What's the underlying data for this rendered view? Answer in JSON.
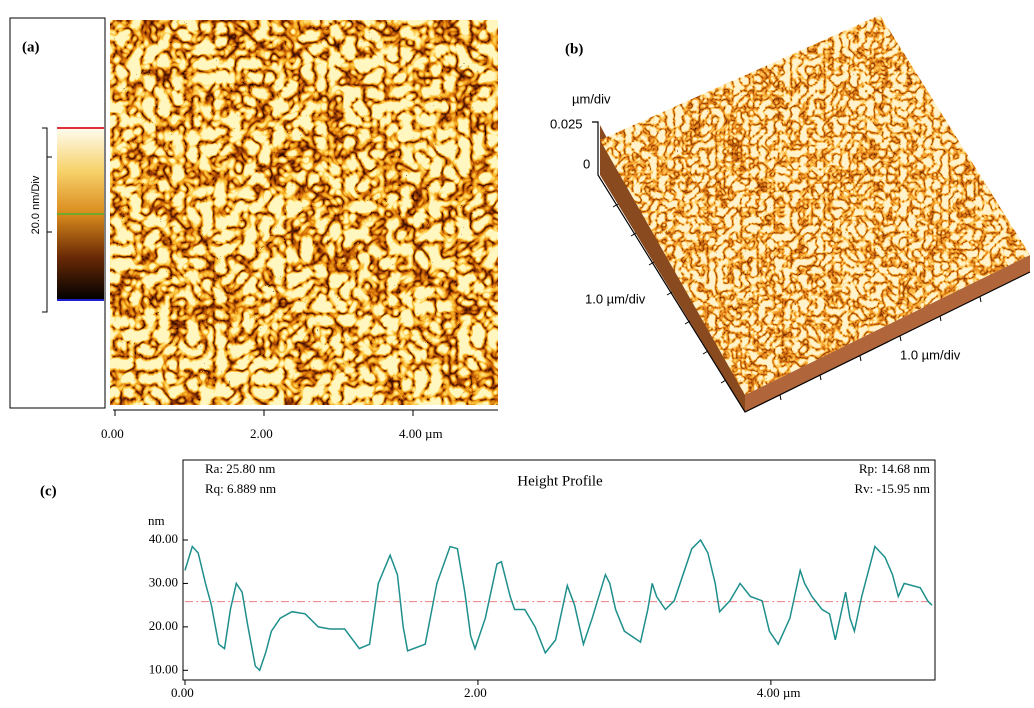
{
  "panels": {
    "a": {
      "label": "(a)",
      "colorbar_label": "20.0 nm/Div",
      "xlim": [
        0,
        5
      ],
      "xticks": [
        {
          "value": 0,
          "label": "0.00"
        },
        {
          "value": 2,
          "label": "2.00"
        },
        {
          "value": 4,
          "label": "4.00 µm"
        }
      ]
    },
    "b": {
      "label": "(b)",
      "z_unit": "µm/div",
      "z_top": "0.025",
      "z_zero": "0",
      "y_label": "1.0 µm/div",
      "x_label": "1.0 µm/div"
    }
  },
  "chart_data": {
    "type": "line",
    "label": "(c)",
    "title": "Height Profile",
    "title_color": "#1a1aff",
    "stats_left": [
      "Ra: 25.80 nm",
      "Rq: 6.889 nm"
    ],
    "stats_right": [
      "Rp: 14.68 nm",
      "Rv: -15.95 nm"
    ],
    "y_label": "nm",
    "xlim": [
      0,
      5.1
    ],
    "ylim": [
      8,
      42.3
    ],
    "xticks": [
      {
        "value": 0,
        "label": "0.00"
      },
      {
        "value": 2,
        "label": "2.00"
      },
      {
        "value": 4,
        "label": "4.00 µm"
      }
    ],
    "yticks": [
      {
        "value": 10,
        "label": "10.00"
      },
      {
        "value": 20,
        "label": "20.00"
      },
      {
        "value": 30,
        "label": "30.00"
      },
      {
        "value": 40,
        "label": "40.00"
      }
    ],
    "mean_line": {
      "value": 25.8,
      "color": "#f08080"
    },
    "x": [
      0,
      0.05,
      0.09,
      0.14,
      0.18,
      0.23,
      0.27,
      0.31,
      0.35,
      0.39,
      0.43,
      0.48,
      0.51,
      0.55,
      0.59,
      0.65,
      0.73,
      0.82,
      0.91,
      0.99,
      1.06,
      1.09,
      1.19,
      1.26,
      1.32,
      1.4,
      1.45,
      1.49,
      1.52,
      1.64,
      1.72,
      1.81,
      1.86,
      1.91,
      1.95,
      1.98,
      2.05,
      2.13,
      2.16,
      2.22,
      2.25,
      2.32,
      2.39,
      2.46,
      2.53,
      2.61,
      2.66,
      2.72,
      2.78,
      2.87,
      2.9,
      2.94,
      3.0,
      3.11,
      3.16,
      3.19,
      3.22,
      3.28,
      3.34,
      3.46,
      3.52,
      3.57,
      3.62,
      3.65,
      3.72,
      3.79,
      3.86,
      3.94,
      3.99,
      4.05,
      4.13,
      4.2,
      4.23,
      4.28,
      4.35,
      4.4,
      4.44,
      4.51,
      4.54,
      4.57,
      4.62,
      4.71,
      4.78,
      4.83,
      4.87,
      4.91,
      5.02,
      5.07,
      5.1
    ],
    "series": [
      {
        "color": "#1f8f8c",
        "values": [
          33,
          38.5,
          37,
          30,
          25,
          16,
          15,
          24,
          30,
          28,
          20,
          11,
          10,
          14,
          19,
          22,
          23.5,
          23,
          20,
          19.5,
          19.5,
          19.5,
          15,
          16,
          30,
          36.5,
          32,
          20,
          14.5,
          16,
          30,
          38.5,
          38,
          28,
          18,
          15,
          22,
          34.5,
          35,
          27,
          24,
          24,
          20,
          14,
          17,
          29.5,
          25,
          16,
          22,
          32,
          30,
          24,
          19,
          16.5,
          24,
          30,
          27,
          24,
          26,
          38,
          40,
          37,
          30,
          23.5,
          26,
          30,
          27,
          26,
          19,
          16,
          22,
          33,
          30,
          27,
          24,
          23,
          17,
          28,
          22,
          19,
          27,
          38.5,
          36,
          32,
          27,
          30,
          29,
          26,
          25
        ]
      }
    ]
  }
}
